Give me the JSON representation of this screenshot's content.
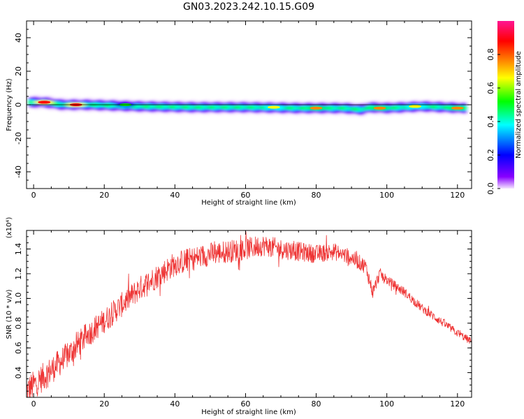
{
  "title": "GN03.2023.242.10.15.G09",
  "colors": {
    "snr_line": "#ee3333",
    "axes": "#000000"
  },
  "chart_data": [
    {
      "type": "heatmap",
      "xlabel": "Height of straight line (km)",
      "ylabel": "Frequency (Hz)",
      "xlim": [
        -2,
        124
      ],
      "ylim": [
        -50,
        50
      ],
      "xticks": [
        0,
        20,
        40,
        60,
        80,
        100,
        120
      ],
      "yticks": [
        -40,
        -20,
        0,
        20,
        40
      ],
      "colorbar": {
        "label": "Normalized spectral amplitude",
        "range": [
          0,
          1
        ],
        "ticks": [
          "0.0",
          "0.2",
          "0.4",
          "0.6",
          "0.8"
        ],
        "colormap": [
          "#f5e6ff",
          "#8800ff",
          "#0000ff",
          "#00ffff",
          "#00ff00",
          "#ffff00",
          "#ff8800",
          "#ff0000",
          "#ff1493"
        ]
      },
      "ridge": [
        [
          -1.5,
          1.5
        ],
        [
          3,
          1.5
        ],
        [
          8,
          0
        ],
        [
          15,
          0
        ],
        [
          30,
          -1
        ],
        [
          45,
          -1.5
        ],
        [
          60,
          -1.5
        ],
        [
          75,
          -2
        ],
        [
          88,
          -2
        ],
        [
          93,
          -3
        ],
        [
          95,
          -1.5
        ],
        [
          100,
          -2
        ],
        [
          110,
          -1
        ],
        [
          122,
          -2
        ]
      ],
      "hotspots": [
        {
          "x": 3,
          "y": 1.5,
          "level": 0.9
        },
        {
          "x": 12,
          "y": 0,
          "level": 0.9
        },
        {
          "x": 26,
          "y": 0,
          "level": 0.55
        },
        {
          "x": 68,
          "y": -1.5,
          "level": 0.6
        },
        {
          "x": 80,
          "y": -2,
          "level": 0.8
        },
        {
          "x": 98,
          "y": -2,
          "level": 0.8
        },
        {
          "x": 108,
          "y": -1,
          "level": 0.6
        },
        {
          "x": 120,
          "y": -2,
          "level": 0.75
        }
      ]
    },
    {
      "type": "line",
      "xlabel": "Height of straight line (km)",
      "ylabel": "SNR (10 * v/v)",
      "scale_label": "(x10⁴)",
      "xlim": [
        -2,
        124
      ],
      "ylim": [
        0.2,
        1.55
      ],
      "xticks": [
        0,
        20,
        40,
        60,
        80,
        100,
        120
      ],
      "yticks": [
        "0.4",
        "0.6",
        "0.8",
        "1.0",
        "1.2",
        "1.4"
      ],
      "trend": [
        [
          -2,
          0.25
        ],
        [
          5,
          0.42
        ],
        [
          10,
          0.55
        ],
        [
          15,
          0.7
        ],
        [
          20,
          0.82
        ],
        [
          25,
          0.95
        ],
        [
          30,
          1.08
        ],
        [
          35,
          1.18
        ],
        [
          40,
          1.28
        ],
        [
          50,
          1.36
        ],
        [
          60,
          1.4
        ],
        [
          65,
          1.43
        ],
        [
          70,
          1.4
        ],
        [
          80,
          1.36
        ],
        [
          85,
          1.38
        ],
        [
          90,
          1.33
        ],
        [
          94,
          1.26
        ],
        [
          96,
          1.05
        ],
        [
          98,
          1.2
        ],
        [
          100,
          1.15
        ],
        [
          105,
          1.05
        ],
        [
          110,
          0.92
        ],
        [
          115,
          0.82
        ],
        [
          120,
          0.72
        ],
        [
          124,
          0.65
        ]
      ],
      "noise": [
        [
          -2,
          0.12
        ],
        [
          20,
          0.1
        ],
        [
          40,
          0.1
        ],
        [
          60,
          0.09
        ],
        [
          85,
          0.07
        ],
        [
          95,
          0.06
        ],
        [
          100,
          0.04
        ],
        [
          124,
          0.03
        ]
      ]
    }
  ]
}
